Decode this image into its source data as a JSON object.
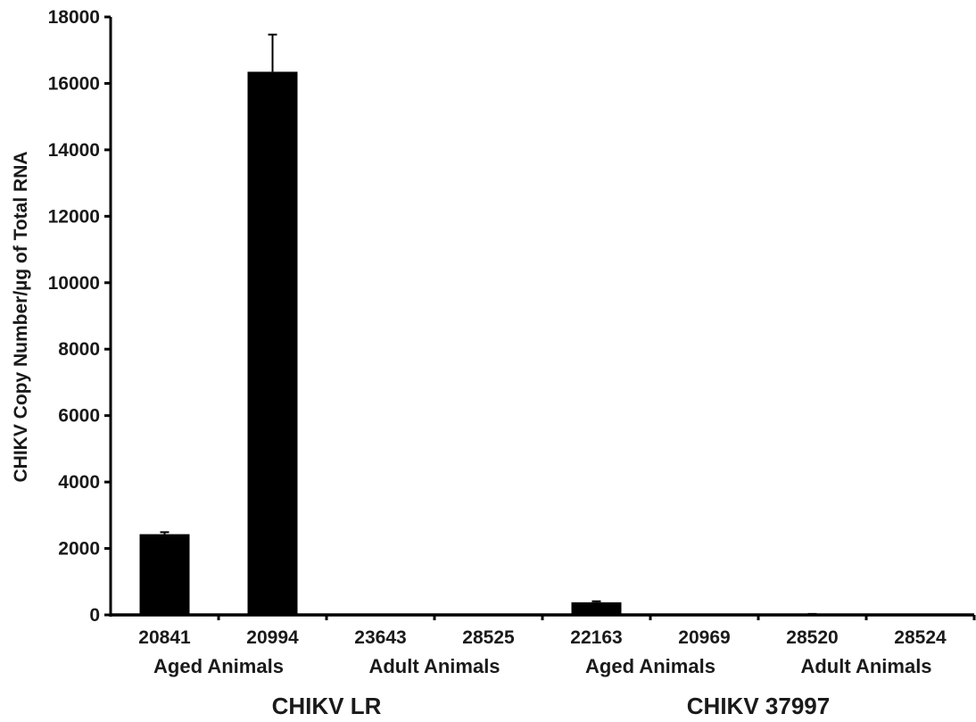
{
  "chart_data": {
    "type": "bar",
    "ylabel": "CHIKV Copy Number/µg of Total RNA",
    "xlabel": "",
    "title": "",
    "ylim": [
      0,
      18000
    ],
    "yticks": [
      0,
      2000,
      4000,
      6000,
      8000,
      10000,
      12000,
      14000,
      16000,
      18000
    ],
    "grid": false,
    "legend": "none",
    "bar_color": "#000000",
    "categories": [
      "20841",
      "20994",
      "23643",
      "28525",
      "22163",
      "20969",
      "28520",
      "28524"
    ],
    "values": [
      2430,
      16350,
      0,
      0,
      380,
      0,
      15,
      0
    ],
    "errors": [
      60,
      1120,
      0,
      0,
      30,
      0,
      15,
      0
    ],
    "age_groups": [
      {
        "label": "Aged Animals",
        "span": [
          0,
          1
        ]
      },
      {
        "label": "Adult Animals",
        "span": [
          2,
          3
        ]
      },
      {
        "label": "Aged Animals",
        "span": [
          4,
          5
        ]
      },
      {
        "label": "Adult Animals",
        "span": [
          6,
          7
        ]
      }
    ],
    "virus_groups": [
      {
        "label": "CHIKV LR",
        "span": [
          0,
          3
        ]
      },
      {
        "label": "CHIKV 37997",
        "span": [
          4,
          7
        ]
      }
    ]
  }
}
